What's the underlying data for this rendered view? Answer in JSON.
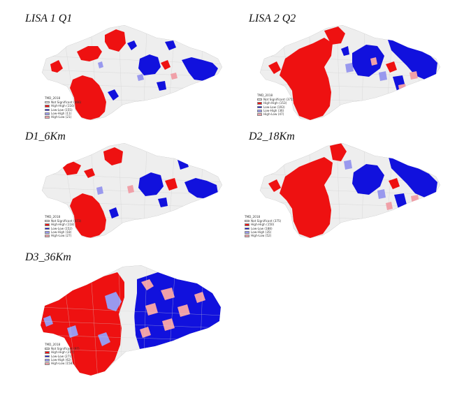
{
  "panels": [
    {
      "id": "lisa1",
      "title": "LISA 1 Q1",
      "legend_title": "TMD_2018",
      "legend": [
        {
          "label": "Not Significant (466)",
          "color": "#eeeeee"
        },
        {
          "label": "High-High (116)",
          "color": "#ee1111"
        },
        {
          "label": "Low-Low (155)",
          "color": "#1111dd"
        },
        {
          "label": "Low-High (11)",
          "color": "#9999ee"
        },
        {
          "label": "High-Low (21)",
          "color": "#f0a0a8"
        }
      ]
    },
    {
      "id": "lisa2",
      "title": "LISA 2 Q2",
      "legend_title": "TMD_2018",
      "legend": [
        {
          "label": "Not Significant (371)",
          "color": "#eeeeee"
        },
        {
          "label": "High-High (153)",
          "color": "#ee1111"
        },
        {
          "label": "Low-Low (193)",
          "color": "#1111dd"
        },
        {
          "label": "Low-High (36)",
          "color": "#9999ee"
        },
        {
          "label": "High-Low (47)",
          "color": "#f0a0a8"
        }
      ]
    },
    {
      "id": "d1",
      "title": "D1_6Km",
      "legend_title": "TMD_2018",
      "legend": [
        {
          "label": "Not Significant (473)",
          "color": "#eeeeee"
        },
        {
          "label": "High-High (118)",
          "color": "#ee1111"
        },
        {
          "label": "Low-Low (152)",
          "color": "#1111dd"
        },
        {
          "label": "Low-High (18)",
          "color": "#9999ee"
        },
        {
          "label": "High-Low (27)",
          "color": "#f0a0a8"
        }
      ]
    },
    {
      "id": "d2",
      "title": "D2_18Km",
      "legend_title": "TMD_2018",
      "legend": [
        {
          "label": "Not Significant (375)",
          "color": "#eeeeee"
        },
        {
          "label": "High-High (150)",
          "color": "#ee1111"
        },
        {
          "label": "Low-Low (188)",
          "color": "#1111dd"
        },
        {
          "label": "Low-High (35)",
          "color": "#9999ee"
        },
        {
          "label": "High-Low (52)",
          "color": "#f0a0a8"
        }
      ]
    },
    {
      "id": "d3",
      "title": "D3_36Km",
      "legend_title": "TMD_2018",
      "legend": [
        {
          "label": "Not Significant (97)",
          "color": "#eeeeee"
        },
        {
          "label": "High-High (217)",
          "color": "#ee1111"
        },
        {
          "label": "Low-Low (271)",
          "color": "#1111dd"
        },
        {
          "label": "Low-High (62)",
          "color": "#9999ee"
        },
        {
          "label": "High-Low (158)",
          "color": "#f0a0a8"
        }
      ]
    }
  ]
}
